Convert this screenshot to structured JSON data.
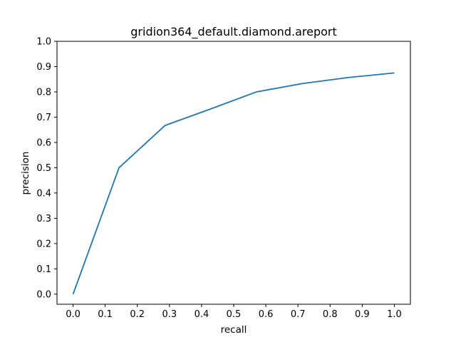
{
  "chart_data": {
    "type": "line",
    "title": "gridion364_default.diamond.areport",
    "xlabel": "recall",
    "ylabel": "precision",
    "xlim": [
      -0.05,
      1.05
    ],
    "ylim": [
      -0.04,
      1.0
    ],
    "x_ticks": [
      "0.0",
      "0.1",
      "0.2",
      "0.3",
      "0.4",
      "0.5",
      "0.6",
      "0.7",
      "0.8",
      "0.9",
      "1.0"
    ],
    "y_ticks": [
      "0.0",
      "0.1",
      "0.2",
      "0.3",
      "0.4",
      "0.5",
      "0.6",
      "0.7",
      "0.8",
      "0.9",
      "1.0"
    ],
    "grid": false,
    "series": [
      {
        "color": "#1f77b4",
        "x": [
          0.0,
          0.143,
          0.286,
          0.429,
          0.571,
          0.714,
          0.857,
          1.0
        ],
        "y": [
          0.0,
          0.5,
          0.667,
          0.733,
          0.8,
          0.833,
          0.857,
          0.875
        ]
      }
    ]
  }
}
